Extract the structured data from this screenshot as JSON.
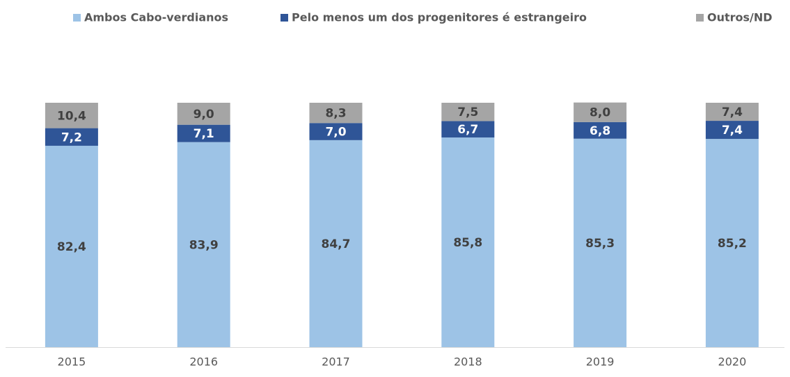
{
  "chart_data": {
    "type": "stacked_bar",
    "categories": [
      "2015",
      "2016",
      "2017",
      "2018",
      "2019",
      "2020"
    ],
    "series": [
      {
        "name": "Ambos Cabo-verdianos",
        "color": "#9dc3e6",
        "values": [
          82.4,
          83.9,
          84.7,
          85.8,
          85.3,
          85.2
        ],
        "value_labels": [
          "82,4",
          "83,9",
          "84,7",
          "85,8",
          "85,3",
          "85,2"
        ]
      },
      {
        "name": "Pelo menos um dos progenitores é estrangeiro",
        "color": "#2f5597",
        "values": [
          7.2,
          7.1,
          7.0,
          6.7,
          6.8,
          7.4
        ],
        "value_labels": [
          "7,2",
          "7,1",
          "7,0",
          "6,7",
          "6,8",
          "7,4"
        ]
      },
      {
        "name": "Outros/ND",
        "color": "#a5a5a5",
        "values": [
          10.4,
          9.0,
          8.3,
          7.5,
          8.0,
          7.4
        ],
        "value_labels": [
          "10,4",
          "9,0",
          "8,3",
          "7,5",
          "8,0",
          "7,4"
        ]
      }
    ],
    "ylim": [
      0,
      100
    ],
    "legend": "top"
  }
}
